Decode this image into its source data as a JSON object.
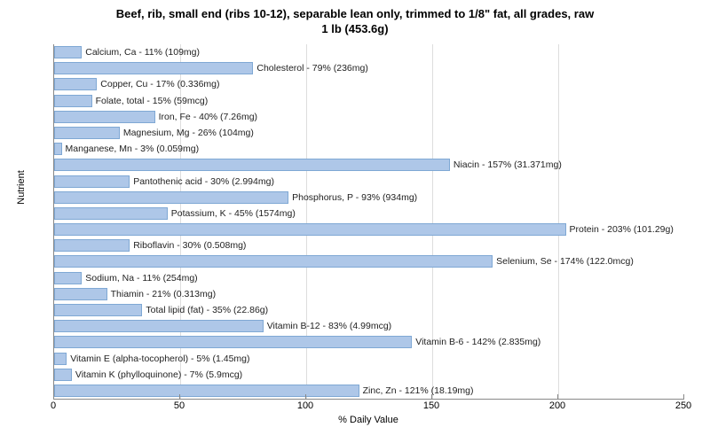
{
  "title_line1": "Beef, rib, small end (ribs 10-12), separable lean only, trimmed to 1/8\" fat, all grades, raw",
  "title_line2": "1 lb (453.6g)",
  "x_label": "% Daily Value",
  "y_label": "Nutrient",
  "chart": {
    "type": "bar",
    "xlim": [
      0,
      250
    ],
    "x_ticks": [
      0,
      50,
      100,
      150,
      200,
      250
    ],
    "bar_color": "#aec7e8",
    "bar_border_color": "#7fa8d4",
    "grid_color": "#dddddd",
    "background_color": "#ffffff",
    "title_fontsize": 13,
    "label_fontsize": 11,
    "tick_fontsize": 11,
    "bar_label_fontsize": 10.5,
    "nutrients": [
      {
        "name": "Calcium, Ca",
        "pct": 11,
        "amount": "109mg"
      },
      {
        "name": "Cholesterol",
        "pct": 79,
        "amount": "236mg"
      },
      {
        "name": "Copper, Cu",
        "pct": 17,
        "amount": "0.336mg"
      },
      {
        "name": "Folate, total",
        "pct": 15,
        "amount": "59mcg"
      },
      {
        "name": "Iron, Fe",
        "pct": 40,
        "amount": "7.26mg"
      },
      {
        "name": "Magnesium, Mg",
        "pct": 26,
        "amount": "104mg"
      },
      {
        "name": "Manganese, Mn",
        "pct": 3,
        "amount": "0.059mg"
      },
      {
        "name": "Niacin",
        "pct": 157,
        "amount": "31.371mg"
      },
      {
        "name": "Pantothenic acid",
        "pct": 30,
        "amount": "2.994mg"
      },
      {
        "name": "Phosphorus, P",
        "pct": 93,
        "amount": "934mg"
      },
      {
        "name": "Potassium, K",
        "pct": 45,
        "amount": "1574mg"
      },
      {
        "name": "Protein",
        "pct": 203,
        "amount": "101.29g"
      },
      {
        "name": "Riboflavin",
        "pct": 30,
        "amount": "0.508mg"
      },
      {
        "name": "Selenium, Se",
        "pct": 174,
        "amount": "122.0mcg"
      },
      {
        "name": "Sodium, Na",
        "pct": 11,
        "amount": "254mg"
      },
      {
        "name": "Thiamin",
        "pct": 21,
        "amount": "0.313mg"
      },
      {
        "name": "Total lipid (fat)",
        "pct": 35,
        "amount": "22.86g"
      },
      {
        "name": "Vitamin B-12",
        "pct": 83,
        "amount": "4.99mcg"
      },
      {
        "name": "Vitamin B-6",
        "pct": 142,
        "amount": "2.835mg"
      },
      {
        "name": "Vitamin E (alpha-tocopherol)",
        "pct": 5,
        "amount": "1.45mg"
      },
      {
        "name": "Vitamin K (phylloquinone)",
        "pct": 7,
        "amount": "5.9mcg"
      },
      {
        "name": "Zinc, Zn",
        "pct": 121,
        "amount": "18.19mg"
      }
    ]
  }
}
